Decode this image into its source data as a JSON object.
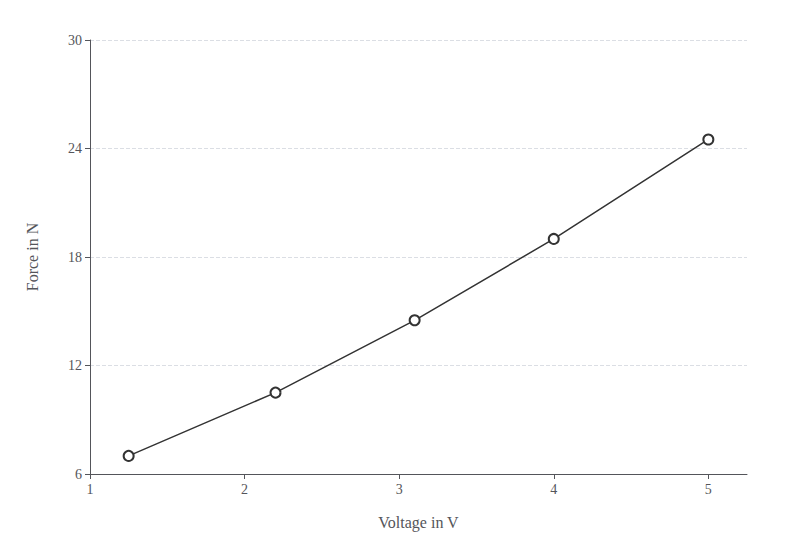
{
  "chart_data": {
    "type": "line",
    "xlabel": "Voltage in V",
    "ylabel": "Force in N",
    "x": [
      1.25,
      2.2,
      3.1,
      4.0,
      5.0
    ],
    "values": [
      7.0,
      10.5,
      14.5,
      19.0,
      24.5
    ],
    "color": "#333333",
    "marker": "circle",
    "xlim": [
      1.0,
      5.25
    ],
    "xticks": [
      1,
      2,
      3,
      4,
      5
    ],
    "ylim": [
      6.0,
      30.0
    ],
    "yticks": [
      6,
      12,
      18,
      24,
      30
    ],
    "grid": "y"
  }
}
